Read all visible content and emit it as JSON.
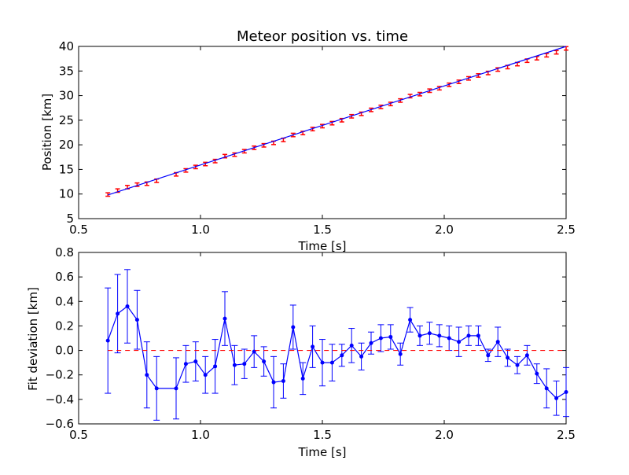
{
  "chart_data": [
    {
      "type": "scatter",
      "title": "Meteor position vs. time",
      "xlabel": "Time [s]",
      "ylabel": "Position [km]",
      "xlim": [
        0.5,
        2.5
      ],
      "ylim": [
        5,
        40
      ],
      "xticks": [
        "0.5",
        "1.0",
        "1.5",
        "2.0",
        "2.5"
      ],
      "yticks": [
        "5",
        "10",
        "15",
        "20",
        "25",
        "30",
        "35",
        "40"
      ],
      "grid": false,
      "series": [
        {
          "kind": "errorbar-points",
          "color": "#ff0000",
          "x": [
            0.62,
            0.66,
            0.7,
            0.74,
            0.78,
            0.82,
            0.9,
            0.94,
            0.98,
            1.02,
            1.06,
            1.1,
            1.14,
            1.18,
            1.22,
            1.26,
            1.3,
            1.34,
            1.38,
            1.42,
            1.46,
            1.5,
            1.54,
            1.58,
            1.62,
            1.66,
            1.7,
            1.74,
            1.78,
            1.82,
            1.86,
            1.9,
            1.94,
            1.98,
            2.02,
            2.06,
            2.1,
            2.14,
            2.18,
            2.22,
            2.26,
            2.3,
            2.34,
            2.38,
            2.42,
            2.46,
            2.5
          ],
          "y": [
            9.9,
            10.7,
            11.4,
            11.9,
            12.1,
            12.7,
            14.0,
            14.8,
            15.5,
            16.1,
            16.7,
            17.7,
            18.0,
            18.7,
            19.4,
            19.9,
            20.4,
            21.0,
            22.0,
            22.4,
            23.2,
            23.8,
            24.4,
            25.0,
            25.8,
            26.3,
            27.1,
            27.7,
            28.3,
            29.0,
            29.9,
            30.3,
            31.0,
            31.5,
            32.2,
            32.8,
            33.5,
            34.1,
            34.6,
            35.3,
            35.8,
            36.4,
            37.1,
            37.6,
            38.2,
            38.8,
            39.6
          ],
          "yerr": 0.35
        },
        {
          "kind": "fit-line",
          "color": "#0000ff",
          "x": [
            0.62,
            2.5
          ],
          "y": [
            9.8,
            40.0
          ]
        }
      ]
    },
    {
      "type": "line",
      "xlabel": "Time [s]",
      "ylabel": "Fit deviation [km]",
      "xlim": [
        0.5,
        2.5
      ],
      "ylim": [
        -0.6,
        0.8
      ],
      "xticks": [
        "0.5",
        "1.0",
        "1.5",
        "2.0",
        "2.5"
      ],
      "yticks": [
        "−0.6",
        "−0.4",
        "−0.2",
        "0.0",
        "0.2",
        "0.4",
        "0.6",
        "0.8"
      ],
      "grid": false,
      "series": [
        {
          "kind": "errorbar-line",
          "color": "#0000ff",
          "x": [
            0.62,
            0.66,
            0.7,
            0.74,
            0.78,
            0.82,
            0.9,
            0.94,
            0.98,
            1.02,
            1.06,
            1.1,
            1.14,
            1.18,
            1.22,
            1.26,
            1.3,
            1.34,
            1.38,
            1.42,
            1.46,
            1.5,
            1.54,
            1.58,
            1.62,
            1.66,
            1.7,
            1.74,
            1.78,
            1.82,
            1.86,
            1.9,
            1.94,
            1.98,
            2.02,
            2.06,
            2.1,
            2.14,
            2.18,
            2.22,
            2.26,
            2.3,
            2.34,
            2.38,
            2.42,
            2.46,
            2.5
          ],
          "y": [
            0.08,
            0.3,
            0.36,
            0.25,
            -0.2,
            -0.31,
            -0.31,
            -0.11,
            -0.09,
            -0.2,
            -0.13,
            0.26,
            -0.12,
            -0.11,
            -0.01,
            -0.09,
            -0.26,
            -0.25,
            0.19,
            -0.23,
            0.03,
            -0.1,
            -0.1,
            -0.04,
            0.04,
            -0.05,
            0.06,
            0.1,
            0.11,
            -0.03,
            0.25,
            0.12,
            0.14,
            0.12,
            0.1,
            0.07,
            0.12,
            0.12,
            -0.04,
            0.07,
            -0.06,
            -0.12,
            -0.04,
            -0.19,
            -0.31,
            -0.39,
            -0.34
          ],
          "yerr": [
            0.43,
            0.32,
            0.3,
            0.24,
            0.27,
            0.26,
            0.25,
            0.15,
            0.16,
            0.15,
            0.22,
            0.22,
            0.16,
            0.12,
            0.13,
            0.12,
            0.21,
            0.14,
            0.18,
            0.13,
            0.17,
            0.19,
            0.15,
            0.09,
            0.14,
            0.11,
            0.09,
            0.11,
            0.1,
            0.09,
            0.1,
            0.08,
            0.09,
            0.09,
            0.1,
            0.12,
            0.08,
            0.08,
            0.05,
            0.12,
            0.07,
            0.07,
            0.08,
            0.08,
            0.16,
            0.14,
            0.2
          ]
        },
        {
          "kind": "reference-line",
          "color": "#ff0000",
          "style": "dashed",
          "x": [
            0.62,
            2.5
          ],
          "y": [
            0.0,
            0.0
          ]
        }
      ]
    }
  ]
}
